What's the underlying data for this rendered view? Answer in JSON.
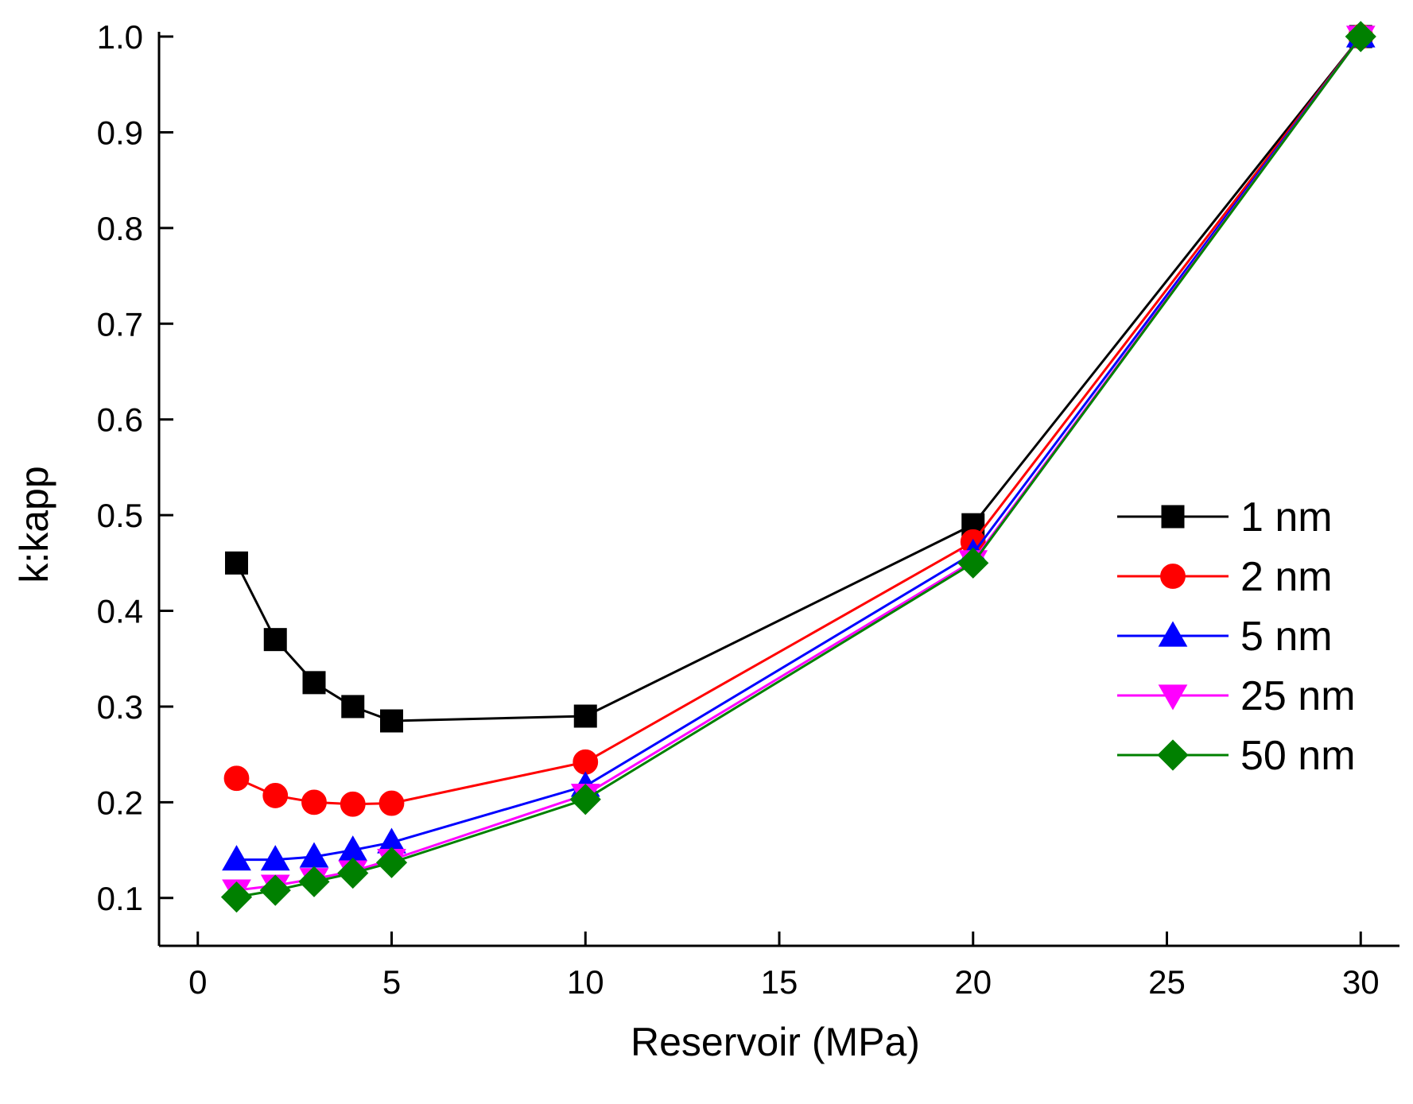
{
  "chart_data": {
    "type": "line",
    "title": "",
    "xlabel": "Reservoir (MPa)",
    "ylabel": "k:kapp",
    "xlim": [
      -1,
      31
    ],
    "ylim": [
      0.05,
      1.005
    ],
    "xticks": [
      0,
      5,
      10,
      15,
      20,
      25,
      30
    ],
    "xtick_labels": [
      "0",
      "5",
      "10",
      "15",
      "20",
      "25",
      "30"
    ],
    "yticks": [
      0.1,
      0.2,
      0.3,
      0.4,
      0.5,
      0.6,
      0.7,
      0.8,
      0.9,
      1.0
    ],
    "ytick_labels": [
      "0.1",
      "0.2",
      "0.3",
      "0.4",
      "0.5",
      "0.6",
      "0.7",
      "0.8",
      "0.9",
      "1.0"
    ],
    "grid": false,
    "legend_position": "right",
    "x": [
      1,
      2,
      3,
      4,
      5,
      10,
      20,
      30
    ],
    "series": [
      {
        "name": "1 nm",
        "color": "#000000",
        "marker": "square",
        "values": [
          0.45,
          0.37,
          0.325,
          0.3,
          0.285,
          0.29,
          0.49,
          1.0
        ]
      },
      {
        "name": "2 nm",
        "color": "#ff0000",
        "marker": "circle",
        "values": [
          0.225,
          0.207,
          0.2,
          0.198,
          0.199,
          0.242,
          0.472,
          1.0
        ]
      },
      {
        "name": "5 nm",
        "color": "#0000ff",
        "marker": "triangle-up",
        "values": [
          0.14,
          0.14,
          0.143,
          0.15,
          0.158,
          0.217,
          0.46,
          1.0
        ]
      },
      {
        "name": "25 nm",
        "color": "#ff00ff",
        "marker": "triangle-down",
        "values": [
          0.108,
          0.113,
          0.12,
          0.128,
          0.14,
          0.208,
          0.452,
          1.0
        ]
      },
      {
        "name": "50 nm",
        "color": "#008000",
        "marker": "diamond",
        "values": [
          0.101,
          0.108,
          0.117,
          0.126,
          0.137,
          0.203,
          0.45,
          1.0
        ]
      }
    ]
  }
}
